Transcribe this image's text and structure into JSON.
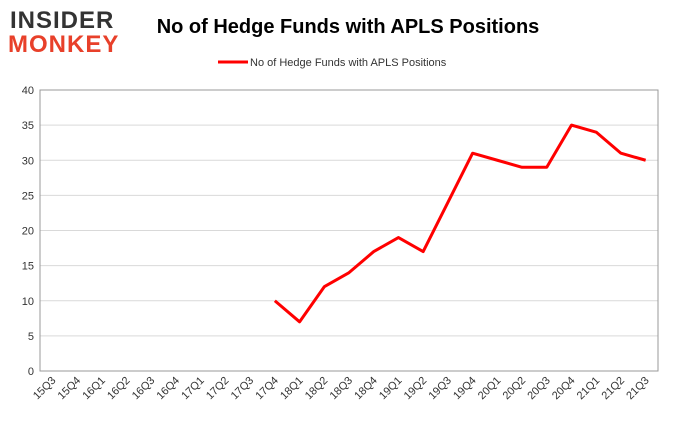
{
  "logo": {
    "line1": "INSIDER",
    "line2": "MONKEY"
  },
  "chart_data": {
    "type": "line",
    "title": "No of Hedge Funds with APLS Positions",
    "categories": [
      "15Q3",
      "15Q4",
      "16Q1",
      "16Q2",
      "16Q3",
      "16Q4",
      "17Q1",
      "17Q2",
      "17Q3",
      "17Q4",
      "18Q1",
      "18Q2",
      "18Q3",
      "18Q4",
      "19Q1",
      "19Q2",
      "19Q3",
      "19Q4",
      "20Q1",
      "20Q2",
      "20Q3",
      "20Q4",
      "21Q1",
      "21Q2",
      "21Q3"
    ],
    "series": [
      {
        "name": "No of Hedge Funds with APLS Positions",
        "color": "#ff0000",
        "values": [
          null,
          null,
          null,
          null,
          null,
          null,
          null,
          null,
          null,
          10,
          7,
          12,
          14,
          17,
          19,
          17,
          24,
          31,
          30,
          29,
          29,
          35,
          34,
          31,
          30
        ]
      }
    ],
    "ylim": [
      0,
      40
    ],
    "yticks": [
      0,
      5,
      10,
      15,
      20,
      25,
      30,
      35,
      40
    ],
    "grid": true,
    "legend": "top"
  }
}
